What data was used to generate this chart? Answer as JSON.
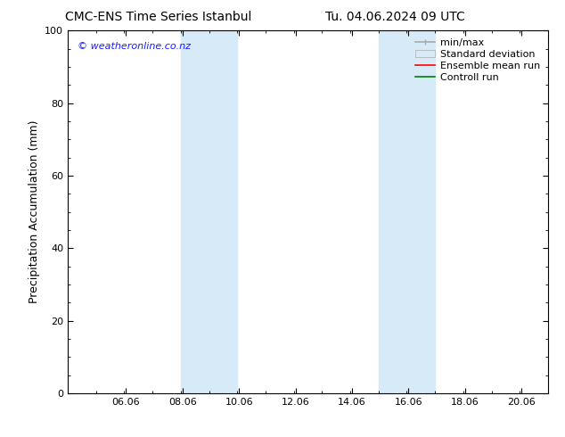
{
  "title_left": "CMC-ENS Time Series Istanbul",
  "title_right": "Tu. 04.06.2024 09 UTC",
  "ylabel": "Precipitation Accumulation (mm)",
  "xlim_left": 4.0,
  "xlim_right": 21.0,
  "ylim_bottom": 0,
  "ylim_top": 100,
  "yticks": [
    0,
    20,
    40,
    60,
    80,
    100
  ],
  "xticks": [
    6.06,
    8.06,
    10.06,
    12.06,
    14.06,
    16.06,
    18.06,
    20.06
  ],
  "xtick_labels": [
    "06.06",
    "08.06",
    "10.06",
    "12.06",
    "14.06",
    "16.06",
    "18.06",
    "20.06"
  ],
  "shaded_regions": [
    {
      "x_start": 8.0,
      "x_end": 10.0,
      "color": "#d6eaf8",
      "alpha": 1.0
    },
    {
      "x_start": 15.0,
      "x_end": 17.0,
      "color": "#d6eaf8",
      "alpha": 1.0
    }
  ],
  "watermark_text": "© weatheronline.co.nz",
  "watermark_color": "#1a1aff",
  "legend_items": [
    {
      "label": "min/max",
      "color": "#aaaaaa",
      "lw": 1.2,
      "ls": "-",
      "type": "line_bar"
    },
    {
      "label": "Standard deviation",
      "color": "#d6eaf8",
      "lw": 6,
      "ls": "-",
      "type": "patch"
    },
    {
      "label": "Ensemble mean run",
      "color": "#ff0000",
      "lw": 1.2,
      "ls": "-",
      "type": "line"
    },
    {
      "label": "Controll run",
      "color": "#008000",
      "lw": 1.2,
      "ls": "-",
      "type": "line"
    }
  ],
  "background_color": "#ffffff",
  "plot_bg_color": "#ffffff",
  "tick_color": "#000000",
  "spine_color": "#000000",
  "title_fontsize": 10,
  "tick_fontsize": 8,
  "ylabel_fontsize": 9,
  "watermark_fontsize": 8,
  "legend_fontsize": 8
}
